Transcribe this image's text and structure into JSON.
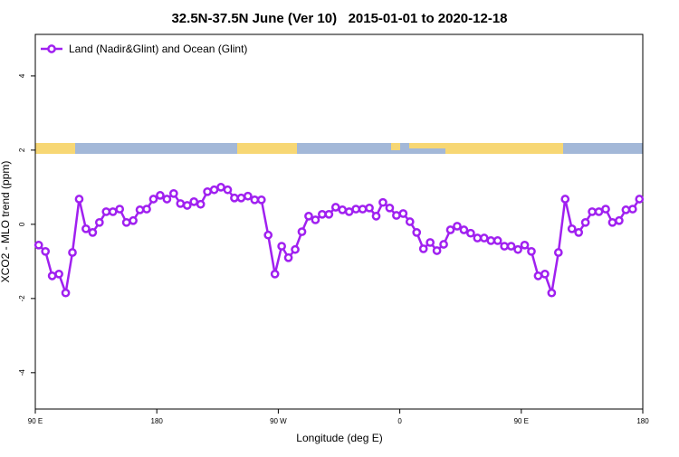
{
  "chart_data": {
    "type": "line",
    "title": "32.5N-37.5N June (Ver 10)   2015-01-01 to 2020-12-18",
    "xlabel": "Longitude (deg E)",
    "ylabel": "XCO2 - MLO trend (ppm)",
    "xlim": [
      90,
      540
    ],
    "ylim": [
      -4.98,
      5.12
    ],
    "xticks": [
      {
        "value": 90,
        "label": "90 E"
      },
      180,
      {
        "value": 270,
        "label": "90 W"
      },
      {
        "value": 360,
        "label": "0"
      },
      {
        "value": 450,
        "label": "90 E"
      },
      {
        "value": 540,
        "label": "180"
      }
    ],
    "yticks": [
      -4,
      -2,
      0,
      2,
      4
    ],
    "grid": false,
    "legend": "top-left",
    "x": [
      92.5,
      97.5,
      102.5,
      107.5,
      112.5,
      117.5,
      122.5,
      127.5,
      132.5,
      137.5,
      142.5,
      147.5,
      152.5,
      157.5,
      162.5,
      167.5,
      172.5,
      177.5,
      182.5,
      187.5,
      192.5,
      197.5,
      202.5,
      207.5,
      212.5,
      217.5,
      222.5,
      227.5,
      232.5,
      237.5,
      242.5,
      247.5,
      252.5,
      257.5,
      262.5,
      267.5,
      272.5,
      277.5,
      282.5,
      287.5,
      292.5,
      297.5,
      302.5,
      307.5,
      312.5,
      317.5,
      322.5,
      327.5,
      332.5,
      337.5,
      342.5,
      347.5,
      352.5,
      357.5,
      362.5,
      367.5,
      372.5,
      377.5,
      382.5,
      387.5,
      392.5,
      397.5,
      402.5,
      407.5,
      412.5,
      417.5,
      422.5,
      427.5,
      432.5,
      437.5,
      442.5,
      447.5,
      452.5,
      457.5,
      462.5,
      467.5,
      472.5,
      477.5,
      482.5,
      487.5,
      492.5,
      497.5,
      502.5,
      507.5,
      512.5,
      517.5,
      522.5,
      527.5,
      532.5,
      537.5
    ],
    "series": [
      {
        "name": "Land (Nadir&Glint) and Ocean (Glint)",
        "color": "#a020f0",
        "values": [
          -0.56,
          -0.73,
          -1.39,
          -1.34,
          -1.85,
          -0.76,
          0.68,
          -0.12,
          -0.22,
          0.05,
          0.34,
          0.34,
          0.41,
          0.05,
          0.1,
          0.39,
          0.41,
          0.68,
          0.78,
          0.68,
          0.83,
          0.56,
          0.51,
          0.61,
          0.54,
          0.88,
          0.93,
          1.0,
          0.93,
          0.71,
          0.71,
          0.76,
          0.66,
          0.66,
          -0.29,
          -1.34,
          -0.59,
          -0.9,
          -0.68,
          -0.2,
          0.22,
          0.12,
          0.27,
          0.27,
          0.46,
          0.39,
          0.34,
          0.41,
          0.41,
          0.44,
          0.22,
          0.59,
          0.44,
          0.24,
          0.29,
          0.07,
          -0.22,
          -0.66,
          -0.49,
          -0.71,
          -0.54,
          -0.15,
          -0.05,
          -0.15,
          -0.24,
          -0.37,
          -0.37,
          -0.44,
          -0.44,
          -0.59,
          -0.59,
          -0.68,
          -0.56,
          -0.73,
          -1.39,
          -1.34,
          -1.85,
          -0.76,
          0.68,
          -0.12,
          -0.22,
          0.05,
          0.34,
          0.34,
          0.41,
          0.05,
          0.1,
          0.39,
          0.41,
          0.68
        ]
      }
    ]
  }
}
